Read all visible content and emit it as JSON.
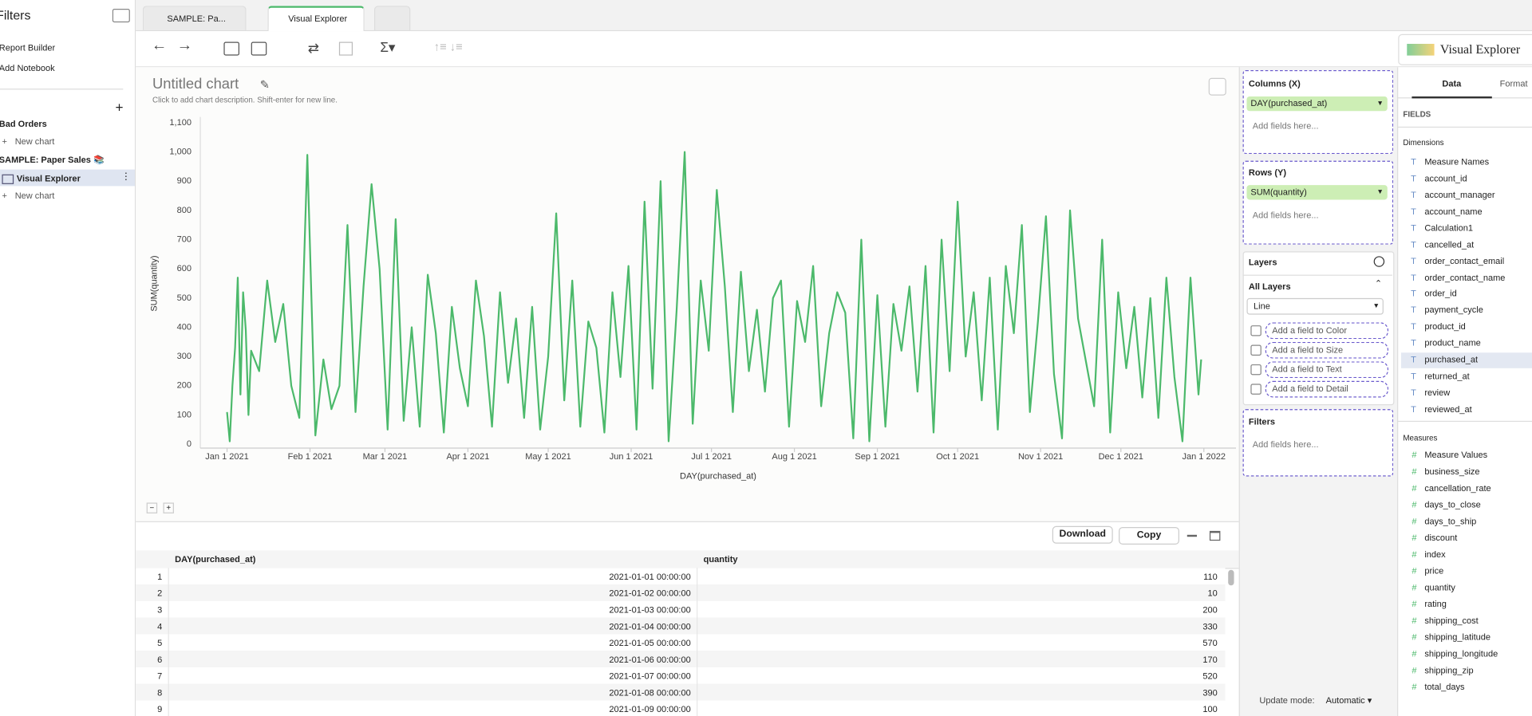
{
  "sidebar": {
    "title": "Filters",
    "links": [
      "Report Builder",
      "Add Notebook"
    ],
    "groups": [
      {
        "name": "Bad Orders",
        "items": [
          "New chart"
        ]
      },
      {
        "name": "SAMPLE: Paper Sales 📚",
        "items": [
          "Visual Explorer",
          "New chart"
        ]
      }
    ]
  },
  "tabs": [
    "SAMPLE: Pa...",
    "Visual Explorer"
  ],
  "app_name": "Visual Explorer",
  "chart_header": {
    "title": "Untitled chart",
    "description": "Click to add chart description. Shift-enter for new line."
  },
  "chart_data": {
    "type": "line",
    "x_label": "DAY(purchased_at)",
    "y_label": "SUM(quantity)",
    "color": "#4cb96b",
    "grid": false,
    "xlim": [
      "2020-12-22",
      "2022-01-13"
    ],
    "xticks": [
      {
        "value": "2021-01-01",
        "label": "Jan 1 2021"
      },
      {
        "value": "2021-02-01",
        "label": "Feb 1 2021"
      },
      {
        "value": "2021-03-01",
        "label": "Mar 1 2021"
      },
      {
        "value": "2021-04-01",
        "label": "Apr 1 2021"
      },
      {
        "value": "2021-05-01",
        "label": "May 1 2021"
      },
      {
        "value": "2021-06-01",
        "label": "Jun 1 2021"
      },
      {
        "value": "2021-07-01",
        "label": "Jul 1 2021"
      },
      {
        "value": "2021-08-01",
        "label": "Aug 1 2021"
      },
      {
        "value": "2021-09-01",
        "label": "Sep 1 2021"
      },
      {
        "value": "2021-10-01",
        "label": "Oct 1 2021"
      },
      {
        "value": "2021-11-01",
        "label": "Nov 1 2021"
      },
      {
        "value": "2021-12-01",
        "label": "Dec 1 2021"
      },
      {
        "value": "2022-01-01",
        "label": "Jan 1 2022"
      }
    ],
    "ylim": [
      0,
      1100
    ],
    "yticks": [
      0,
      100,
      200,
      300,
      400,
      500,
      600,
      700,
      800,
      900,
      {
        "value": 1000,
        "label": "1,000"
      },
      {
        "value": 1100,
        "label": "1,100"
      }
    ],
    "x": [
      "2021-01-01",
      "2021-01-02",
      "2021-01-03",
      "2021-01-04",
      "2021-01-05",
      "2021-01-06",
      "2021-01-07",
      "2021-01-08",
      "2021-01-09",
      "2021-01-10",
      "2021-01-13",
      "2021-01-16",
      "2021-01-19",
      "2021-01-22",
      "2021-01-25",
      "2021-01-28",
      "2021-01-31",
      "2021-02-03",
      "2021-02-06",
      "2021-02-09",
      "2021-02-12",
      "2021-02-15",
      "2021-02-18",
      "2021-02-21",
      "2021-02-24",
      "2021-02-27",
      "2021-03-02",
      "2021-03-05",
      "2021-03-08",
      "2021-03-11",
      "2021-03-14",
      "2021-03-17",
      "2021-03-20",
      "2021-03-23",
      "2021-03-26",
      "2021-03-29",
      "2021-04-01",
      "2021-04-04",
      "2021-04-07",
      "2021-04-10",
      "2021-04-13",
      "2021-04-16",
      "2021-04-19",
      "2021-04-22",
      "2021-04-25",
      "2021-04-28",
      "2021-05-01",
      "2021-05-04",
      "2021-05-07",
      "2021-05-10",
      "2021-05-13",
      "2021-05-16",
      "2021-05-19",
      "2021-05-22",
      "2021-05-25",
      "2021-05-28",
      "2021-05-31",
      "2021-06-03",
      "2021-06-06",
      "2021-06-09",
      "2021-06-12",
      "2021-06-15",
      "2021-06-18",
      "2021-06-21",
      "2021-06-24",
      "2021-06-27",
      "2021-06-30",
      "2021-07-03",
      "2021-07-06",
      "2021-07-09",
      "2021-07-12",
      "2021-07-15",
      "2021-07-18",
      "2021-07-21",
      "2021-07-24",
      "2021-07-27",
      "2021-07-30",
      "2021-08-02",
      "2021-08-05",
      "2021-08-08",
      "2021-08-11",
      "2021-08-14",
      "2021-08-17",
      "2021-08-20",
      "2021-08-23",
      "2021-08-26",
      "2021-08-29",
      "2021-09-01",
      "2021-09-04",
      "2021-09-07",
      "2021-09-10",
      "2021-09-13",
      "2021-09-16",
      "2021-09-19",
      "2021-09-22",
      "2021-09-25",
      "2021-09-28",
      "2021-10-01",
      "2021-10-04",
      "2021-10-07",
      "2021-10-10",
      "2021-10-13",
      "2021-10-16",
      "2021-10-19",
      "2021-10-22",
      "2021-10-25",
      "2021-10-28",
      "2021-10-31",
      "2021-11-03",
      "2021-11-06",
      "2021-11-09",
      "2021-11-12",
      "2021-11-15",
      "2021-11-18",
      "2021-11-21",
      "2021-11-24",
      "2021-11-27",
      "2021-11-30",
      "2021-12-03",
      "2021-12-06",
      "2021-12-09",
      "2021-12-12",
      "2021-12-15",
      "2021-12-18",
      "2021-12-21",
      "2021-12-24",
      "2021-12-27",
      "2021-12-30",
      "2021-12-31"
    ],
    "values": [
      110,
      10,
      200,
      330,
      570,
      170,
      520,
      390,
      100,
      320,
      250,
      560,
      350,
      480,
      200,
      90,
      990,
      30,
      290,
      120,
      200,
      750,
      110,
      540,
      890,
      600,
      50,
      770,
      80,
      400,
      60,
      580,
      380,
      40,
      470,
      260,
      130,
      560,
      370,
      60,
      520,
      210,
      430,
      90,
      470,
      50,
      300,
      790,
      150,
      560,
      60,
      420,
      330,
      40,
      520,
      230,
      610,
      50,
      830,
      190,
      900,
      10,
      460,
      1000,
      70,
      560,
      320,
      870,
      540,
      110,
      590,
      250,
      460,
      180,
      500,
      560,
      60,
      490,
      350,
      610,
      130,
      380,
      520,
      450,
      20,
      700,
      10,
      510,
      60,
      480,
      320,
      540,
      180,
      610,
      40,
      700,
      250,
      830,
      300,
      520,
      150,
      570,
      50,
      610,
      380,
      750,
      110,
      420,
      780,
      240,
      20,
      800,
      430,
      280,
      130,
      700,
      40,
      520,
      260,
      470,
      160,
      500,
      90,
      570,
      230,
      10,
      570,
      170,
      290
    ]
  },
  "table": {
    "buttons": [
      "Download",
      "Copy"
    ],
    "columns": [
      "DAY(purchased_at)",
      "quantity"
    ],
    "rows": [
      [
        1,
        "2021-01-01 00:00:00",
        110
      ],
      [
        2,
        "2021-01-02 00:00:00",
        10
      ],
      [
        3,
        "2021-01-03 00:00:00",
        200
      ],
      [
        4,
        "2021-01-04 00:00:00",
        330
      ],
      [
        5,
        "2021-01-05 00:00:00",
        570
      ],
      [
        6,
        "2021-01-06 00:00:00",
        170
      ],
      [
        7,
        "2021-01-07 00:00:00",
        520
      ],
      [
        8,
        "2021-01-08 00:00:00",
        390
      ],
      [
        9,
        "2021-01-09 00:00:00",
        100
      ]
    ]
  },
  "shelves": {
    "columns": {
      "title": "Columns (X)",
      "field": "DAY(purchased_at)",
      "placeholder": "Add fields here..."
    },
    "rows": {
      "title": "Rows (Y)",
      "field": "SUM(quantity)",
      "placeholder": "Add fields here..."
    },
    "layers": {
      "title": "Layers",
      "all": "All Layers",
      "mark": "Line",
      "encodings": [
        "Add a field to Color",
        "Add a field to Size",
        "Add a field to Text",
        "Add a field to Detail"
      ]
    },
    "filters": {
      "title": "Filters",
      "placeholder": "Add fields here..."
    },
    "update_mode": {
      "label": "Update mode:",
      "value": "Automatic"
    }
  },
  "fields_panel": {
    "tabs": [
      "Data",
      "Format"
    ],
    "heading": "FIELDS",
    "dimensions_title": "Dimensions",
    "dimensions": [
      "Measure Names",
      "account_id",
      "account_manager",
      "account_name",
      "Calculation1",
      "cancelled_at",
      "order_contact_email",
      "order_contact_name",
      "order_id",
      "payment_cycle",
      "product_id",
      "product_name",
      "purchased_at",
      "returned_at",
      "review",
      "reviewed_at"
    ],
    "measures_title": "Measures",
    "measures": [
      "Measure Values",
      "business_size",
      "cancellation_rate",
      "days_to_close",
      "days_to_ship",
      "discount",
      "index",
      "price",
      "quantity",
      "rating",
      "shipping_cost",
      "shipping_latitude",
      "shipping_longitude",
      "shipping_zip",
      "total_days"
    ]
  }
}
